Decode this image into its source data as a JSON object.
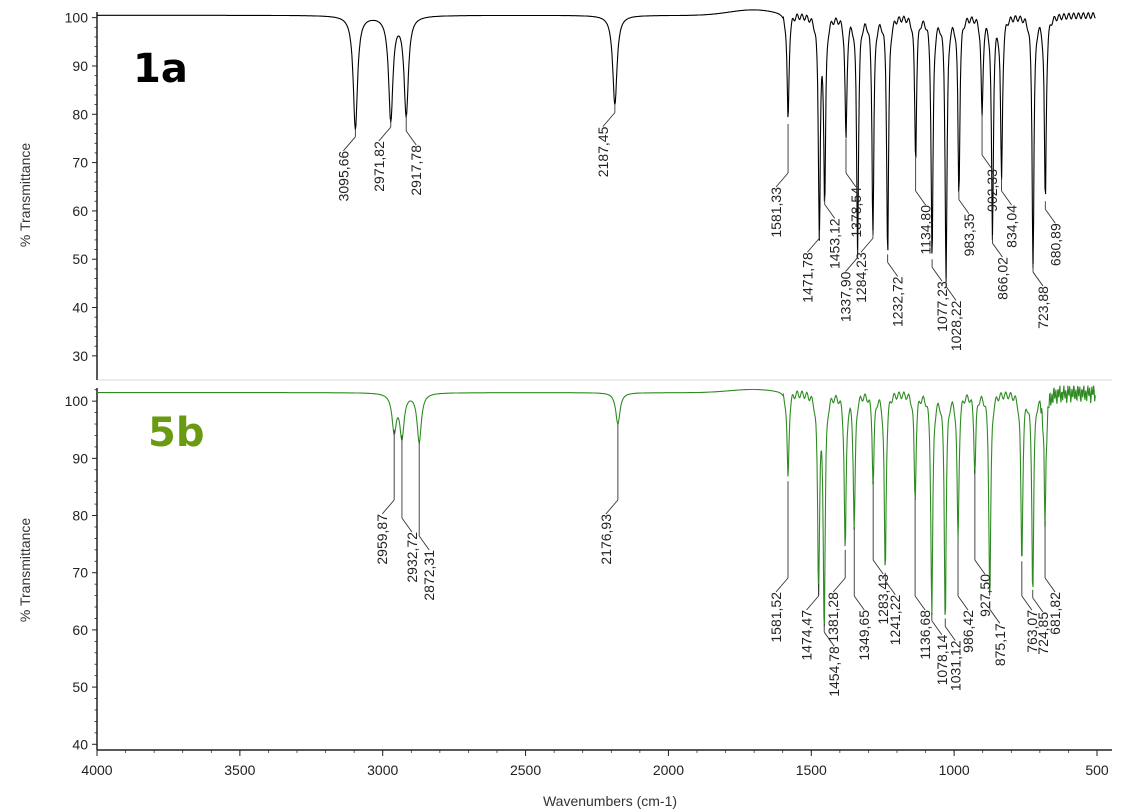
{
  "chart_data": [
    {
      "type": "line",
      "panel_label": "1a",
      "color": "#000000",
      "label_color": "#000000",
      "ylabel": "% Transmittance",
      "xlim": [
        4000,
        500
      ],
      "ylim": [
        25,
        102
      ],
      "yticks": [
        30,
        40,
        50,
        60,
        70,
        80,
        90,
        100
      ],
      "baseline": 100.5,
      "peaks": [
        {
          "x": 3095.66,
          "y": 77,
          "label": "3095,66",
          "side": "l"
        },
        {
          "x": 2971.82,
          "y": 79,
          "label": "2971,82",
          "side": "l"
        },
        {
          "x": 2917.78,
          "y": 80,
          "label": "2917,78",
          "side": "r"
        },
        {
          "x": 2187.45,
          "y": 82,
          "label": "2187,45",
          "side": "l"
        },
        {
          "x": 1581.33,
          "y": 78,
          "label": "1581,33",
          "side": "l"
        },
        {
          "x": 1471.78,
          "y": 56,
          "label": "1471,78",
          "side": "l"
        },
        {
          "x": 1453.12,
          "y": 63,
          "label": "1453,12",
          "side": "r"
        },
        {
          "x": 1378.54,
          "y": 75,
          "label": "1378,54",
          "side": "r"
        },
        {
          "x": 1337.9,
          "y": 52,
          "label": "1337,90",
          "side": "l"
        },
        {
          "x": 1284.23,
          "y": 56,
          "label": "1284,23",
          "side": "l"
        },
        {
          "x": 1232.72,
          "y": 51,
          "label": "1232,72",
          "side": "r"
        },
        {
          "x": 1134.8,
          "y": 71,
          "label": "1134,80",
          "side": "r"
        },
        {
          "x": 1077.23,
          "y": 50,
          "label": "1077,23",
          "side": "r"
        },
        {
          "x": 1028.22,
          "y": 46,
          "label": "1028,22",
          "side": "r"
        },
        {
          "x": 983.35,
          "y": 64,
          "label": "983,35",
          "side": "r"
        },
        {
          "x": 902.33,
          "y": 80,
          "label": "902,33",
          "side": "r"
        },
        {
          "x": 866.02,
          "y": 55,
          "label": "866,02",
          "side": "r"
        },
        {
          "x": 834.04,
          "y": 67,
          "label": "834,04",
          "side": "r"
        },
        {
          "x": 723.88,
          "y": 49,
          "label": "723,88",
          "side": "r"
        },
        {
          "x": 680.89,
          "y": 62,
          "label": "680,89",
          "side": "r"
        }
      ]
    },
    {
      "type": "line",
      "panel_label": "5b",
      "color": "#2e8b22",
      "label_color": "#6a9a12",
      "ylabel": "% Transmittance",
      "xlabel": "Wavenumbers (cm-1)",
      "xlim": [
        4000,
        500
      ],
      "ylim": [
        39,
        103
      ],
      "yticks": [
        40,
        50,
        60,
        70,
        80,
        90,
        100
      ],
      "xticks": [
        4000,
        3500,
        3000,
        2500,
        2000,
        1500,
        1000,
        500
      ],
      "baseline": 101.5,
      "peaks": [
        {
          "x": 2959.87,
          "y": 95,
          "label": "2959,87",
          "side": "l"
        },
        {
          "x": 2932.72,
          "y": 94,
          "label": "2932,72",
          "side": "r"
        },
        {
          "x": 2872.31,
          "y": 93,
          "label": "2872,31",
          "side": "r"
        },
        {
          "x": 2176.93,
          "y": 96,
          "label": "2176,93",
          "side": "l"
        },
        {
          "x": 1581.52,
          "y": 86,
          "label": "1581,52",
          "side": "l"
        },
        {
          "x": 1474.47,
          "y": 68,
          "label": "1474,47",
          "side": "l"
        },
        {
          "x": 1454.78,
          "y": 61,
          "label": "1454,78",
          "side": "r"
        },
        {
          "x": 1381.28,
          "y": 74,
          "label": "1381,28",
          "side": "l"
        },
        {
          "x": 1349.65,
          "y": 78,
          "label": "1349,65",
          "side": "r"
        },
        {
          "x": 1283.43,
          "y": 86,
          "label": "1283,43",
          "side": "r"
        },
        {
          "x": 1241.22,
          "y": 70,
          "label": "1241,22",
          "side": "r"
        },
        {
          "x": 1136.68,
          "y": 83,
          "label": "1136,68",
          "side": "r"
        },
        {
          "x": 1078.14,
          "y": 63,
          "label": "1078,14",
          "side": "r"
        },
        {
          "x": 1031.12,
          "y": 62,
          "label": "1031,12",
          "side": "r"
        },
        {
          "x": 986.42,
          "y": 76,
          "label": "986,42",
          "side": "r"
        },
        {
          "x": 927.5,
          "y": 88,
          "label": "927,50",
          "side": "r"
        },
        {
          "x": 875.17,
          "y": 65,
          "label": "875,17",
          "side": "r"
        },
        {
          "x": 763.07,
          "y": 72,
          "label": "763,07",
          "side": "r"
        },
        {
          "x": 724.85,
          "y": 67,
          "label": "724,85",
          "side": "r"
        },
        {
          "x": 681.82,
          "y": 79,
          "label": "681,82",
          "side": "r"
        }
      ]
    }
  ]
}
